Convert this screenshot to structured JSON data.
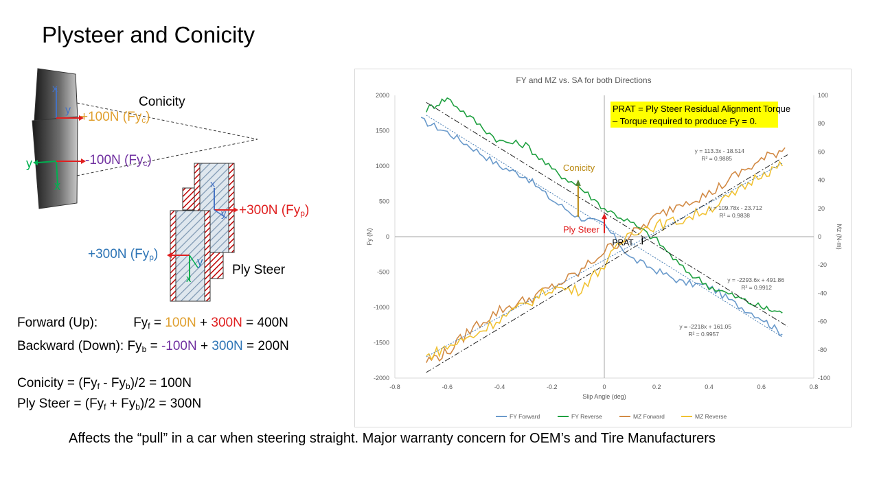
{
  "slide": {
    "title": "Plysteer and Conicity",
    "footer": "Affects the “pull” in a car when steering straight.  Major warranty concern for OEM’s and Tire Manufacturers"
  },
  "diagram": {
    "conicity_label": "Conicity",
    "ply_steer_label": "Ply Steer",
    "axis_x": "x",
    "axis_y": "y",
    "conicity_pos": {
      "value": "+100N",
      "sym": "Fy",
      "sub": "c",
      "close": ")"
    },
    "conicity_neg": {
      "value": "-100N",
      "sym": "Fy",
      "sub": "c",
      "close": ")"
    },
    "ply_upper": {
      "value": "+300N",
      "sym": "Fy",
      "sub": "p",
      "close": ")"
    },
    "ply_lower": {
      "value": "+300N",
      "sym": "Fy",
      "sub": "p",
      "close": ")"
    }
  },
  "equations": {
    "forward": {
      "label": "Forward (Up):",
      "lhs": "Fy",
      "lhs_sub": "f",
      "eq": " = ",
      "a": "100N",
      "plus": " + ",
      "b": "300N",
      "result": " = 400N"
    },
    "backward": {
      "label": "Backward (Down): Fy",
      "lhs_sub": "b",
      "eq": " = ",
      "a": "-100N",
      "plus": " + ",
      "b": "300N",
      "result": " = 200N"
    },
    "conicity": {
      "p1": "Conicity = (Fy",
      "s1": "f",
      "p2": " - Fy",
      "s2": "b",
      "p3": ")/2 = 100N"
    },
    "plysteer": {
      "p1": "Ply Steer = (Fy",
      "s1": "f",
      "p2": " + Fy",
      "s2": "b",
      "p3": ")/2 = 300N"
    }
  },
  "colors": {
    "orange": "#E0A030",
    "purple": "#7030A0",
    "red": "#E02020",
    "blue": "#2E75B6",
    "green": "#00B050"
  },
  "chart_data": {
    "type": "line",
    "title": "FY and MZ vs. SA for both Directions",
    "xlabel": "Slip Angle (deg)",
    "ylabel": "Fy (N)",
    "y2label": "Mz (N-m)",
    "xlim": [
      -0.8,
      0.8
    ],
    "ylim": [
      -2000,
      2000
    ],
    "y2lim": [
      -100,
      100
    ],
    "x_ticks": [
      "-0.8",
      "-0.6",
      "-0.4",
      "-0.2",
      "0",
      "0.2",
      "0.4",
      "0.6",
      "0.8"
    ],
    "y_ticks": [
      "2000",
      "1500",
      "1000",
      "500",
      "0",
      "-500",
      "-1000",
      "-1500",
      "-2000"
    ],
    "y2_ticks": [
      "100",
      "80",
      "60",
      "40",
      "20",
      "0",
      "-20",
      "-40",
      "-60",
      "-80",
      "-100"
    ],
    "grid": false,
    "legend_position": "bottom",
    "series": [
      {
        "name": "FY Forward",
        "axis": "left",
        "color": "#6A9ACB",
        "x": [
          -0.7,
          -0.6,
          -0.5,
          -0.4,
          -0.3,
          -0.2,
          -0.1,
          0.0,
          0.1,
          0.2,
          0.3,
          0.4,
          0.5,
          0.6,
          0.68
        ],
        "y": [
          1650,
          1480,
          1250,
          1000,
          850,
          520,
          280,
          170,
          -300,
          -480,
          -650,
          -700,
          -950,
          -1150,
          -1380
        ]
      },
      {
        "name": "FY Reverse",
        "axis": "left",
        "color": "#1FA040",
        "x": [
          -0.68,
          -0.6,
          -0.5,
          -0.4,
          -0.3,
          -0.2,
          -0.1,
          0.0,
          0.1,
          0.2,
          0.3,
          0.4,
          0.5,
          0.6,
          0.68
        ],
        "y": [
          1800,
          1960,
          1650,
          1350,
          1300,
          950,
          720,
          400,
          200,
          -50,
          -450,
          -700,
          -850,
          -1000,
          -1080
        ]
      },
      {
        "name": "MZ Forward",
        "axis": "right",
        "color": "#D28A45",
        "x": [
          -0.68,
          -0.6,
          -0.5,
          -0.4,
          -0.3,
          -0.2,
          -0.1,
          0.0,
          0.1,
          0.2,
          0.3,
          0.4,
          0.5,
          0.6,
          0.69
        ],
        "y": [
          -88,
          -82,
          -64,
          -52,
          -45,
          -36,
          -26,
          -10,
          1,
          14,
          25,
          30,
          43,
          54,
          63
        ]
      },
      {
        "name": "MZ Reverse",
        "axis": "right",
        "color": "#F1C232",
        "x": [
          -0.68,
          -0.6,
          -0.5,
          -0.4,
          -0.3,
          -0.2,
          -0.1,
          0.0,
          0.1,
          0.2,
          0.3,
          0.4,
          0.5,
          0.6,
          0.68
        ],
        "y": [
          -85,
          -78,
          -70,
          -58,
          -48,
          -36,
          -38,
          -20,
          4,
          8,
          12,
          20,
          30,
          45,
          50
        ]
      }
    ],
    "trendlines": [
      {
        "eq": "y = 113.3x - 18.514",
        "r2": "R² = 0.9885"
      },
      {
        "eq": "y = 109.78x - 23.712",
        "r2": "R² = 0.9838"
      },
      {
        "eq": "y = -2293.6x + 491.86",
        "r2": "R² = 0.9912"
      },
      {
        "eq": "y = -2218x + 161.05",
        "r2": "R² = 0.9957"
      }
    ],
    "annotations": {
      "prat_box": [
        "PRAT = Ply Steer Residual Alignment Torque",
        "– Torque required to produce  Fy = 0."
      ],
      "conicity": "Conicity",
      "ply_steer": "Ply Steer",
      "prat": "PRAT"
    }
  }
}
